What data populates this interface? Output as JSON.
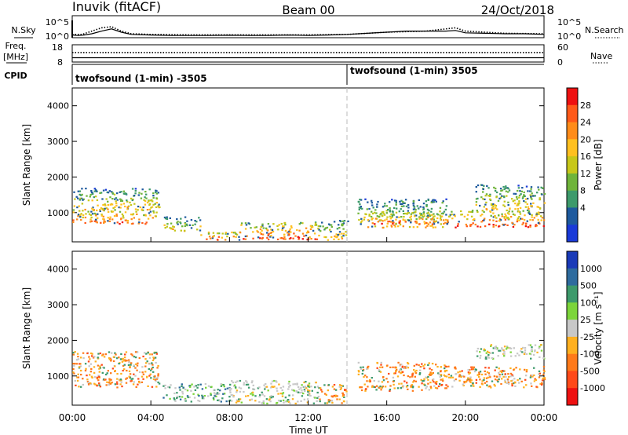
{
  "header": {
    "left": "Inuvik (fitACF)",
    "center": "Beam 00",
    "right": "24/Oct/2018"
  },
  "chart_data": [
    {
      "type": "line",
      "name": "noise",
      "ylabel_left": "N.Sky",
      "ylabel_right": "N.Search",
      "left_ticks": [
        "10^5",
        "10^0"
      ],
      "right_ticks": [
        "10^5",
        "10^0"
      ],
      "series": [
        {
          "name": "N.Sky",
          "style": "solid",
          "x": [
            0.0,
            0.3,
            0.6,
            1.0,
            1.5,
            2.0,
            2.5,
            3.0,
            4.0,
            5.0,
            6.0,
            7.0,
            8.0,
            9.0,
            10.0,
            11.0,
            12.0,
            13.0,
            14.0,
            15.0,
            16.0,
            17.0,
            18.0,
            19.0,
            19.5,
            20.0,
            21.0,
            22.0,
            23.0,
            24.0
          ],
          "y_frac": [
            0.12,
            0.1,
            0.12,
            0.18,
            0.3,
            0.4,
            0.25,
            0.15,
            0.12,
            0.1,
            0.1,
            0.1,
            0.11,
            0.1,
            0.1,
            0.12,
            0.1,
            0.12,
            0.15,
            0.2,
            0.25,
            0.3,
            0.3,
            0.3,
            0.33,
            0.22,
            0.2,
            0.18,
            0.18,
            0.15
          ]
        },
        {
          "name": "N.Search",
          "style": "dotted",
          "x": [
            0.0,
            0.5,
            1.0,
            1.5,
            2.0,
            2.5,
            3.0,
            4.0,
            6.0,
            8.0,
            10.0,
            12.0,
            14.0,
            16.0,
            18.0,
            19.0,
            19.5,
            20.0,
            22.0,
            24.0
          ],
          "y_frac": [
            0.15,
            0.15,
            0.3,
            0.45,
            0.5,
            0.3,
            0.18,
            0.15,
            0.13,
            0.13,
            0.13,
            0.13,
            0.15,
            0.25,
            0.3,
            0.4,
            0.45,
            0.3,
            0.2,
            0.18
          ]
        }
      ]
    },
    {
      "type": "line",
      "name": "frequency-nave",
      "ylabel_left": "Freq.\n[MHz]",
      "ylabel_right": "Nave",
      "left_ticks": [
        "18",
        "8"
      ],
      "right_ticks": [
        "60",
        "0"
      ],
      "series": [
        {
          "name": "Freq.",
          "style": "solid",
          "x": [
            0,
            24
          ],
          "y_frac": [
            0.25,
            0.25
          ]
        },
        {
          "name": "Nave",
          "style": "dotted",
          "x": [
            0,
            24
          ],
          "y_frac": [
            0.55,
            0.55
          ]
        }
      ]
    },
    {
      "type": "table",
      "name": "cpid",
      "label": "CPID",
      "segments": [
        {
          "start": 0,
          "end": 14.0,
          "text": "twofsound (1-min) -3505"
        },
        {
          "start": 14.0,
          "end": 24,
          "text": "twofsound (1-min) 3505"
        }
      ]
    },
    {
      "type": "heatmap",
      "name": "power",
      "ylabel": "Slant Range [km]",
      "yticks": [
        "1000",
        "2000",
        "3000",
        "4000"
      ],
      "ytick_values": [
        1000,
        2000,
        3000,
        4000
      ],
      "ylim": [
        180,
        4500
      ],
      "xlim": [
        0,
        24
      ],
      "colorbar": {
        "label": "Power [dB]",
        "ticks": [
          "28",
          "24",
          "20",
          "16",
          "12",
          "8",
          "4"
        ],
        "colors": [
          "#ee1111",
          "#ff5a1a",
          "#ff8c1a",
          "#ffc020",
          "#c7c71a",
          "#6fb43a",
          "#3d9a6b",
          "#1e5a9e",
          "#1a3ad8"
        ]
      },
      "blobs": [
        {
          "x": [
            0.0,
            4.4
          ],
          "y": [
            700,
            1100
          ],
          "level": "high"
        },
        {
          "x": [
            0.0,
            4.4
          ],
          "y": [
            1100,
            1700
          ],
          "level": "mid"
        },
        {
          "x": [
            4.6,
            6.5
          ],
          "y": [
            500,
            900
          ],
          "level": "mid"
        },
        {
          "x": [
            6.5,
            8.5
          ],
          "y": [
            250,
            500
          ],
          "level": "high"
        },
        {
          "x": [
            8.5,
            12.5
          ],
          "y": [
            250,
            750
          ],
          "level": "high"
        },
        {
          "x": [
            12.5,
            14.0
          ],
          "y": [
            250,
            800
          ],
          "level": "mid"
        },
        {
          "x": [
            14.5,
            19.0
          ],
          "y": [
            600,
            1400
          ],
          "level": "mid"
        },
        {
          "x": [
            15.0,
            19.0
          ],
          "y": [
            700,
            1000
          ],
          "level": "high"
        },
        {
          "x": [
            19.0,
            24.0
          ],
          "y": [
            600,
            1100
          ],
          "level": "high"
        },
        {
          "x": [
            20.5,
            24.0
          ],
          "y": [
            1100,
            1800
          ],
          "level": "mid"
        }
      ]
    },
    {
      "type": "heatmap",
      "name": "velocity",
      "ylabel": "Slant Range [km]",
      "yticks": [
        "1000",
        "2000",
        "3000",
        "4000"
      ],
      "ytick_values": [
        1000,
        2000,
        3000,
        4000
      ],
      "ylim": [
        180,
        4500
      ],
      "xlim": [
        0,
        24
      ],
      "xticks": [
        "00:00",
        "04:00",
        "08:00",
        "12:00",
        "16:00",
        "20:00",
        "00:00"
      ],
      "xtick_values": [
        0,
        4,
        8,
        12,
        16,
        20,
        24
      ],
      "xlabel": "Time UT",
      "colorbar": {
        "label": "Velocity [m s⁻¹]",
        "ticks": [
          "1000",
          "500",
          "100",
          "25",
          "-25",
          "-100",
          "-500",
          "-1000"
        ],
        "colors": [
          "#1a3ab8",
          "#2e6b9e",
          "#3d9a6b",
          "#7cd53a",
          "#c8c8c8",
          "#ffb020",
          "#ff7a1a",
          "#ff4a1a",
          "#ee1111"
        ]
      },
      "blobs": [
        {
          "x": [
            0.0,
            4.4
          ],
          "y": [
            700,
            1700
          ],
          "level": "neg"
        },
        {
          "x": [
            4.6,
            8.0
          ],
          "y": [
            300,
            800
          ],
          "level": "pos"
        },
        {
          "x": [
            8.0,
            12.5
          ],
          "y": [
            250,
            900
          ],
          "level": "zero"
        },
        {
          "x": [
            12.5,
            14.0
          ],
          "y": [
            250,
            800
          ],
          "level": "neg"
        },
        {
          "x": [
            14.5,
            19.0
          ],
          "y": [
            600,
            1400
          ],
          "level": "neg"
        },
        {
          "x": [
            19.0,
            24.0
          ],
          "y": [
            700,
            1300
          ],
          "level": "neg"
        },
        {
          "x": [
            20.5,
            24.0
          ],
          "y": [
            1500,
            1900
          ],
          "level": "zero"
        }
      ]
    }
  ]
}
